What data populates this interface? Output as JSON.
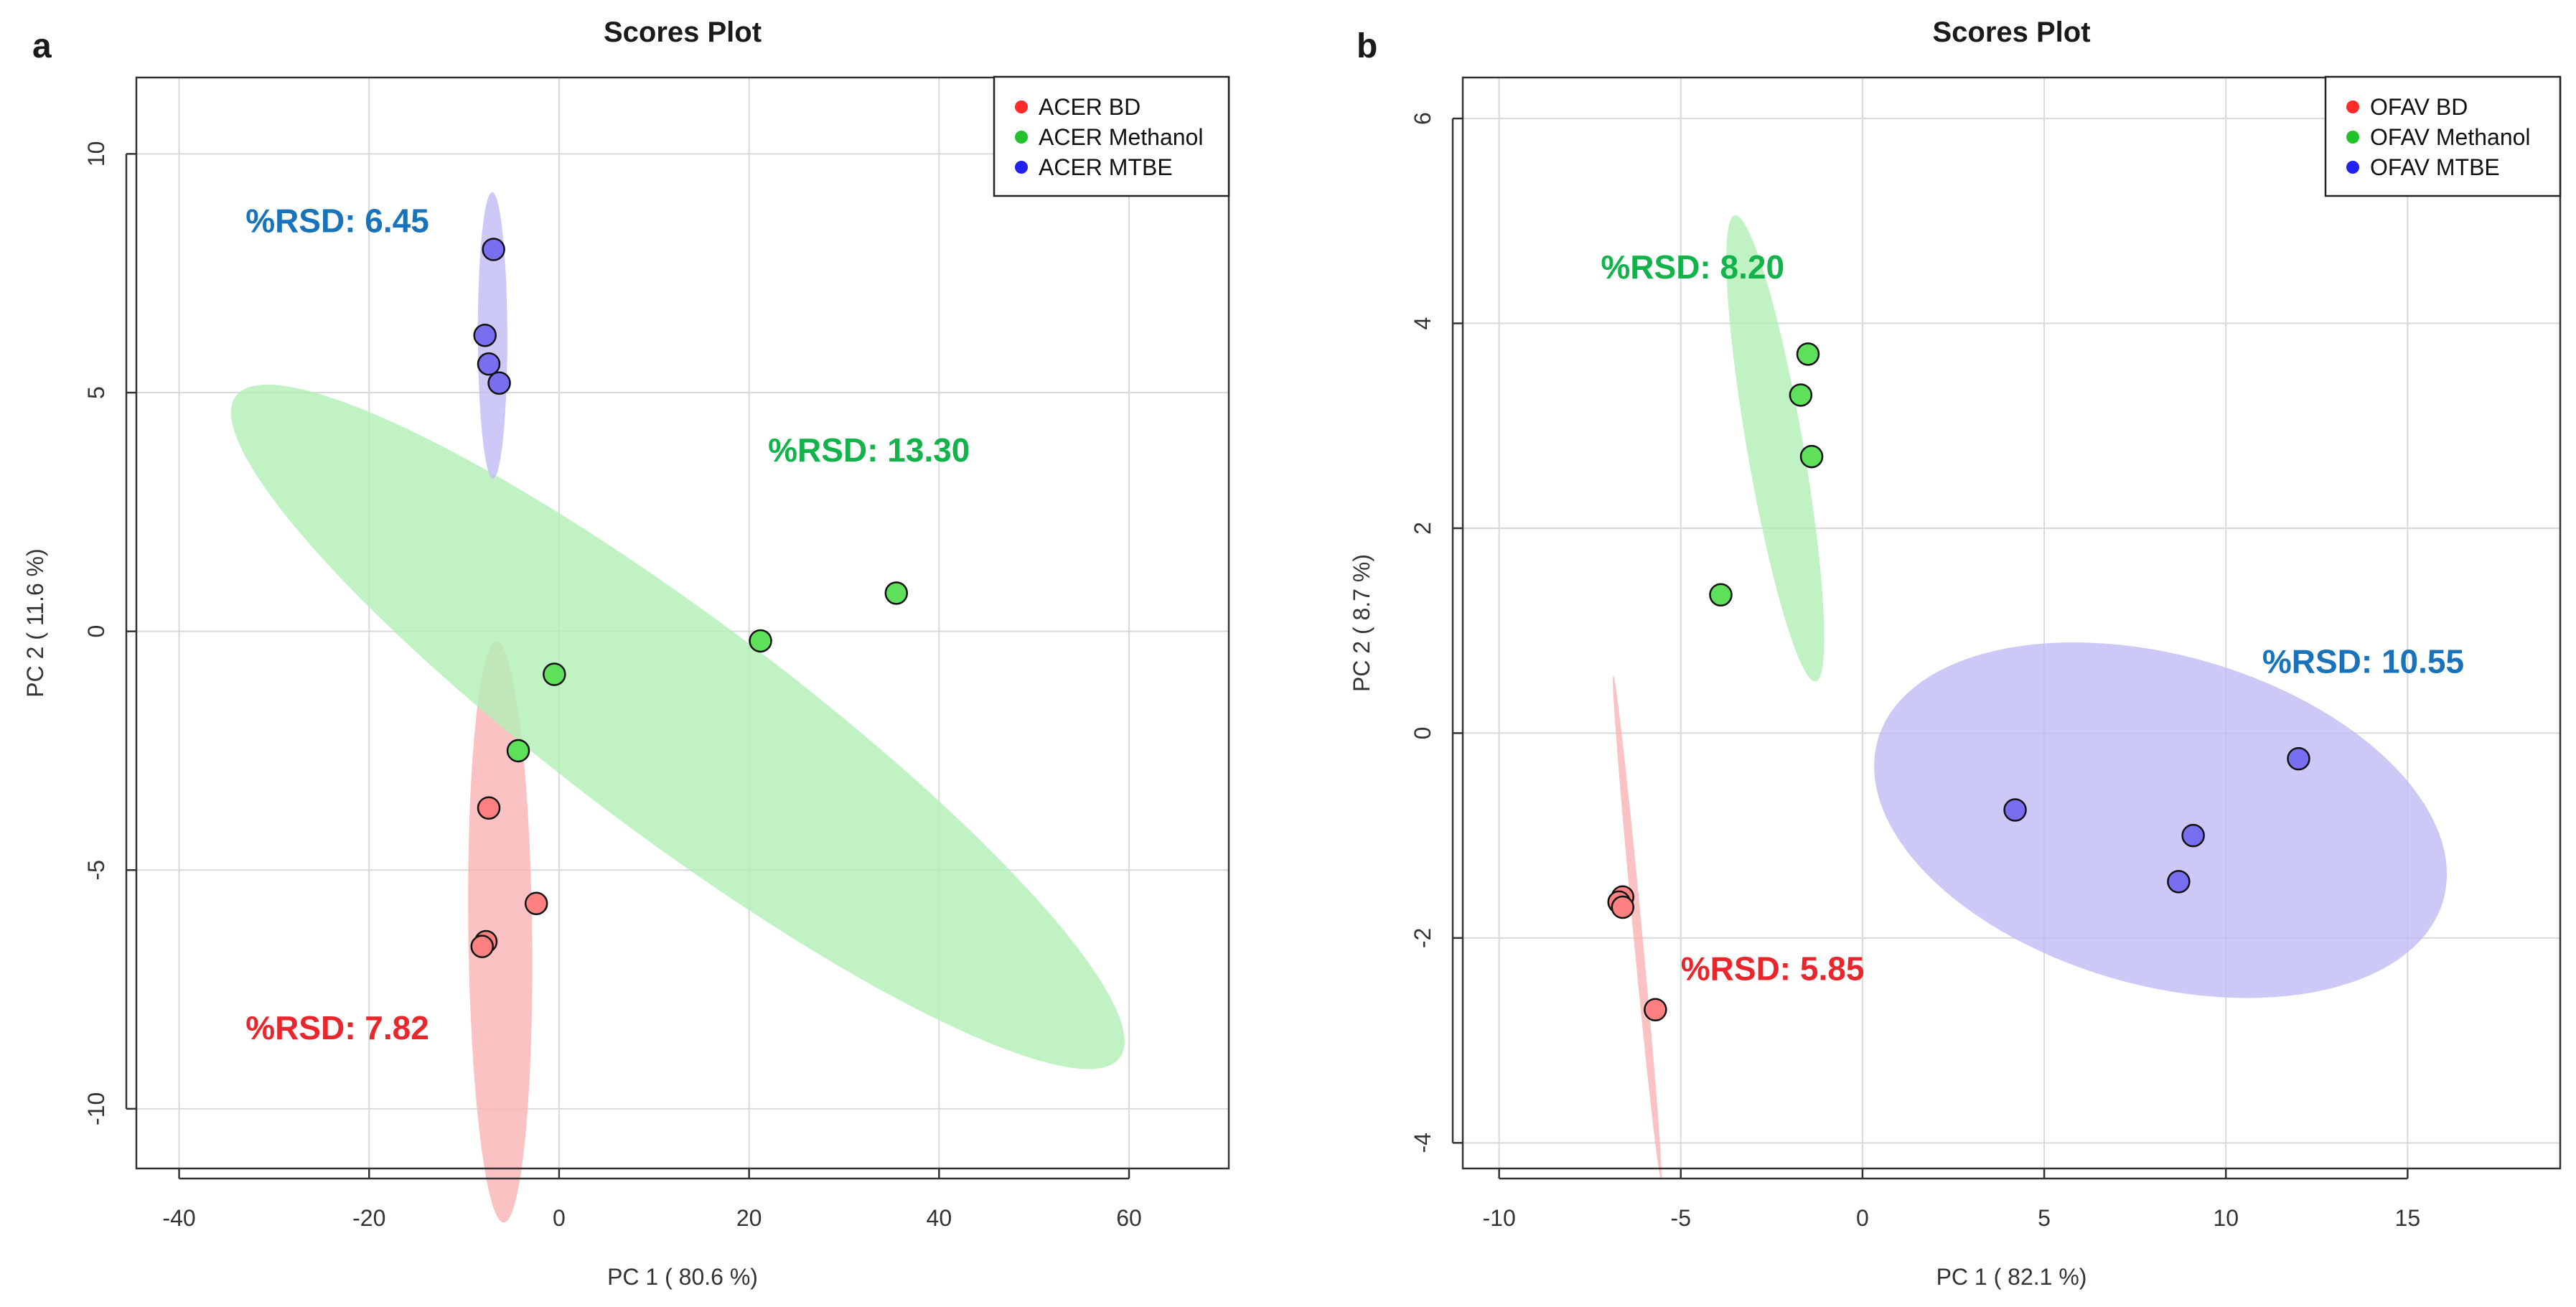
{
  "chart_data": [
    {
      "panel_label": "a",
      "type": "scatter",
      "title": "Scores Plot",
      "xlabel": "PC 1 ( 80.6 %)",
      "ylabel": "PC 2 ( 11.6 %)",
      "xlim": [
        -44.5,
        70.5
      ],
      "ylim": [
        -11.25,
        11.6
      ],
      "xticks": [
        -40,
        -20,
        0,
        20,
        40,
        60
      ],
      "yticks": [
        -10,
        -5,
        0,
        5,
        10
      ],
      "grid": true,
      "legend_position": "top-right",
      "series": [
        {
          "name": "ACER BD",
          "color": "#ff2a2a",
          "fill": "#ff8080",
          "ellipse_fill": "#f9b4b4",
          "points": [
            [
              -7.4,
              -3.7
            ],
            [
              -2.4,
              -5.7
            ],
            [
              -7.7,
              -6.5
            ],
            [
              -8.1,
              -6.6
            ]
          ],
          "ellipse": {
            "cx": -6.2,
            "cy": -6.3,
            "rx": 6.1,
            "ry": 3.35,
            "angle": -85
          },
          "rsd_label": "%RSD: 7.82",
          "rsd_color": "#e8262b",
          "rsd_anchor": [
            -33,
            -8.3
          ]
        },
        {
          "name": "ACER Methanol",
          "color": "#22c22a",
          "fill": "#5ee05a",
          "ellipse_fill": "#b2efb6",
          "points": [
            [
              35.5,
              0.8
            ],
            [
              21.2,
              -0.2
            ],
            [
              -0.5,
              -0.9
            ],
            [
              -4.3,
              -2.5
            ]
          ],
          "ellipse": {
            "cx": 12.5,
            "cy": -2.0,
            "rx": 47.5,
            "ry": 2.8,
            "angle": -8
          },
          "rsd_label": "%RSD: 13.30",
          "rsd_color": "#12b34a",
          "rsd_anchor": [
            22,
            3.8
          ]
        },
        {
          "name": "ACER MTBE",
          "color": "#2222ee",
          "fill": "#7a6ef0",
          "ellipse_fill": "#c2bdf5",
          "points": [
            [
              -6.9,
              8.0
            ],
            [
              -7.8,
              6.2
            ],
            [
              -7.4,
              5.6
            ],
            [
              -6.3,
              5.2
            ]
          ],
          "ellipse": {
            "cx": -7.0,
            "cy": 6.2,
            "rx": 3.0,
            "ry": 1.55,
            "angle": -89
          },
          "rsd_label": "%RSD: 6.45",
          "rsd_color": "#1873bb",
          "rsd_anchor": [
            -33,
            8.6
          ]
        }
      ]
    },
    {
      "panel_label": "b",
      "type": "scatter",
      "title": "Scores Plot",
      "xlabel": "PC 1 ( 82.1 %)",
      "ylabel": "PC 2 ( 8.7 %)",
      "xlim": [
        -11.0,
        19.2
      ],
      "ylim": [
        -4.25,
        6.4
      ],
      "xticks": [
        -10,
        -5,
        0,
        5,
        10,
        15
      ],
      "yticks": [
        -4,
        -2,
        0,
        2,
        4,
        6
      ],
      "grid": true,
      "legend_position": "top-right",
      "series": [
        {
          "name": "OFAV BD",
          "color": "#ff2a2a",
          "fill": "#ff8080",
          "ellipse_fill": "#f9b4b4",
          "points": [
            [
              -6.6,
              -1.6
            ],
            [
              -6.7,
              -1.65
            ],
            [
              -6.6,
              -1.7
            ],
            [
              -5.7,
              -2.7
            ]
          ],
          "ellipse": {
            "cx": -6.2,
            "cy": -1.9,
            "rx": 2.55,
            "ry": 0.12,
            "angle": -75
          },
          "rsd_label": "%RSD: 5.85",
          "rsd_color": "#e8262b",
          "rsd_anchor": [
            -5.0,
            -2.3
          ]
        },
        {
          "name": "OFAV Methanol",
          "color": "#22c22a",
          "fill": "#5ee05a",
          "ellipse_fill": "#b2efb6",
          "points": [
            [
              -1.5,
              3.7
            ],
            [
              -1.7,
              3.3
            ],
            [
              -1.4,
              2.7
            ],
            [
              -3.9,
              1.35
            ]
          ],
          "ellipse": {
            "cx": -2.4,
            "cy": 2.78,
            "rx": 2.55,
            "ry": 0.7,
            "angle": -62
          },
          "rsd_label": "%RSD: 8.20",
          "rsd_color": "#12b34a",
          "rsd_anchor": [
            -7.2,
            4.55
          ]
        },
        {
          "name": "OFAV MTBE",
          "color": "#2222ee",
          "fill": "#7a6ef0",
          "ellipse_fill": "#c2bdf5",
          "points": [
            [
              12.0,
              -0.25
            ],
            [
              4.2,
              -0.75
            ],
            [
              9.1,
              -1.0
            ],
            [
              8.7,
              -1.45
            ]
          ],
          "ellipse": {
            "cx": 8.2,
            "cy": -0.85,
            "rx": 7.9,
            "ry": 1.65,
            "angle": -4
          },
          "rsd_label": "%RSD: 10.55",
          "rsd_color": "#1873bb",
          "rsd_anchor": [
            11,
            0.7
          ]
        }
      ]
    }
  ]
}
